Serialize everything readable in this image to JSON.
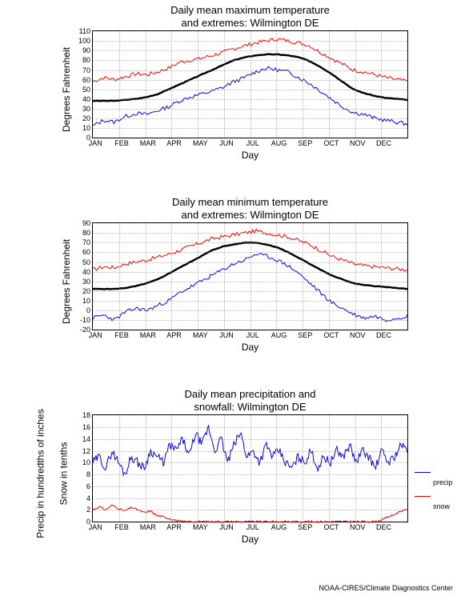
{
  "footer": "NOAA-CIRES/Climate Diagnostics Center",
  "months": [
    "JAN",
    "FEB",
    "MAR",
    "APR",
    "MAY",
    "JUN",
    "JUL",
    "AUG",
    "SEP",
    "OCT",
    "NOV",
    "DEC"
  ],
  "chart1": {
    "type": "line",
    "title_line1": "Daily mean maximum temperature",
    "title_line2": "and extremes: Wilmington DE",
    "ylabel": "Degrees Fahrenheit",
    "xlabel": "Day",
    "ylim": [
      0,
      110
    ],
    "ytick_step": 10,
    "colors": {
      "max": "#ff0000",
      "mean": "#000000",
      "min": "#0000ff"
    },
    "line_widths": {
      "max": 1,
      "mean": 2.5,
      "min": 1
    },
    "background_color": "#ffffff",
    "grid_color": "#888888",
    "mean_curve": [
      38,
      38,
      38,
      39,
      40,
      42,
      45,
      50,
      55,
      60,
      65,
      70,
      75,
      80,
      83,
      85,
      86,
      86,
      85,
      83,
      79,
      73,
      66,
      58,
      50,
      46,
      43,
      41,
      40,
      39
    ],
    "max_noise": [
      58,
      62,
      60,
      63,
      66,
      65,
      68,
      72,
      78,
      80,
      82,
      85,
      88,
      92,
      95,
      98,
      100,
      102,
      100,
      98,
      95,
      88,
      82,
      76,
      70,
      68,
      65,
      62,
      60,
      58
    ],
    "min_noise": [
      12,
      18,
      16,
      22,
      25,
      24,
      28,
      32,
      38,
      42,
      45,
      48,
      52,
      58,
      62,
      68,
      72,
      70,
      68,
      62,
      56,
      48,
      40,
      32,
      26,
      24,
      20,
      18,
      16,
      14
    ]
  },
  "chart2": {
    "type": "line",
    "title_line1": "Daily mean minimum temperature",
    "title_line2": "and extremes: Wilmington DE",
    "ylabel": "Degrees Fahrenheit",
    "xlabel": "Day",
    "ylim": [
      -20,
      90
    ],
    "ytick_step": 10,
    "colors": {
      "max": "#ff0000",
      "mean": "#000000",
      "min": "#0000ff"
    },
    "line_widths": {
      "max": 1,
      "mean": 2.5,
      "min": 1
    },
    "background_color": "#ffffff",
    "grid_color": "#888888",
    "mean_curve": [
      22,
      22,
      22,
      23,
      25,
      28,
      32,
      38,
      44,
      50,
      56,
      62,
      66,
      68,
      70,
      70,
      68,
      65,
      60,
      54,
      48,
      42,
      36,
      32,
      28,
      26,
      25,
      24,
      23,
      22
    ],
    "max_noise": [
      42,
      45,
      44,
      48,
      50,
      52,
      55,
      58,
      62,
      66,
      70,
      74,
      76,
      78,
      80,
      82,
      80,
      78,
      76,
      72,
      68,
      62,
      56,
      52,
      48,
      46,
      45,
      44,
      43,
      42
    ],
    "min_noise": [
      -8,
      -5,
      -10,
      -2,
      2,
      0,
      5,
      10,
      18,
      24,
      30,
      36,
      42,
      48,
      52,
      58,
      56,
      52,
      46,
      38,
      28,
      18,
      8,
      2,
      -4,
      -8,
      -6,
      -10,
      -8,
      -6
    ]
  },
  "chart3": {
    "type": "line",
    "title_line1": "Daily mean precipitation and",
    "title_line2": "snowfall: Wilmington DE",
    "ylabel": "Precip in hundredths of inches\nSnow in tenths",
    "ylabel_line1": "Precip in hundredths of inches",
    "ylabel_line2": "Snow in tenths",
    "xlabel": "Day",
    "ylim": [
      0,
      18
    ],
    "ytick_step": 2,
    "colors": {
      "precip": "#0000ff",
      "snow": "#ff0000"
    },
    "line_widths": {
      "precip": 1,
      "snow": 1
    },
    "background_color": "#ffffff",
    "grid_color": "#888888",
    "legend": {
      "precip_label": "precip",
      "snow_label": "snow"
    },
    "precip_values": [
      10,
      11,
      9,
      12,
      10,
      8,
      11,
      10,
      9,
      12,
      11,
      10,
      13,
      12,
      14,
      11,
      15,
      13,
      16,
      12,
      14,
      10,
      13,
      15,
      11,
      12,
      10,
      13,
      11,
      12,
      10,
      9,
      11,
      10,
      12,
      9,
      11,
      10,
      12,
      11,
      13,
      10,
      12,
      11,
      9,
      12,
      10,
      11,
      13,
      12
    ],
    "snow_values": [
      2,
      2.5,
      2,
      2.8,
      2.2,
      1.8,
      2.4,
      2,
      1.5,
      1.8,
      1,
      0.8,
      0.5,
      0.2,
      0,
      0,
      0,
      0,
      0,
      0,
      0,
      0,
      0,
      0,
      0,
      0,
      0,
      0,
      0,
      0,
      0,
      0,
      0,
      0,
      0,
      0,
      0,
      0,
      0,
      0,
      0,
      0,
      0,
      0,
      0,
      0.3,
      0.8,
      1.2,
      1.8,
      2
    ]
  }
}
